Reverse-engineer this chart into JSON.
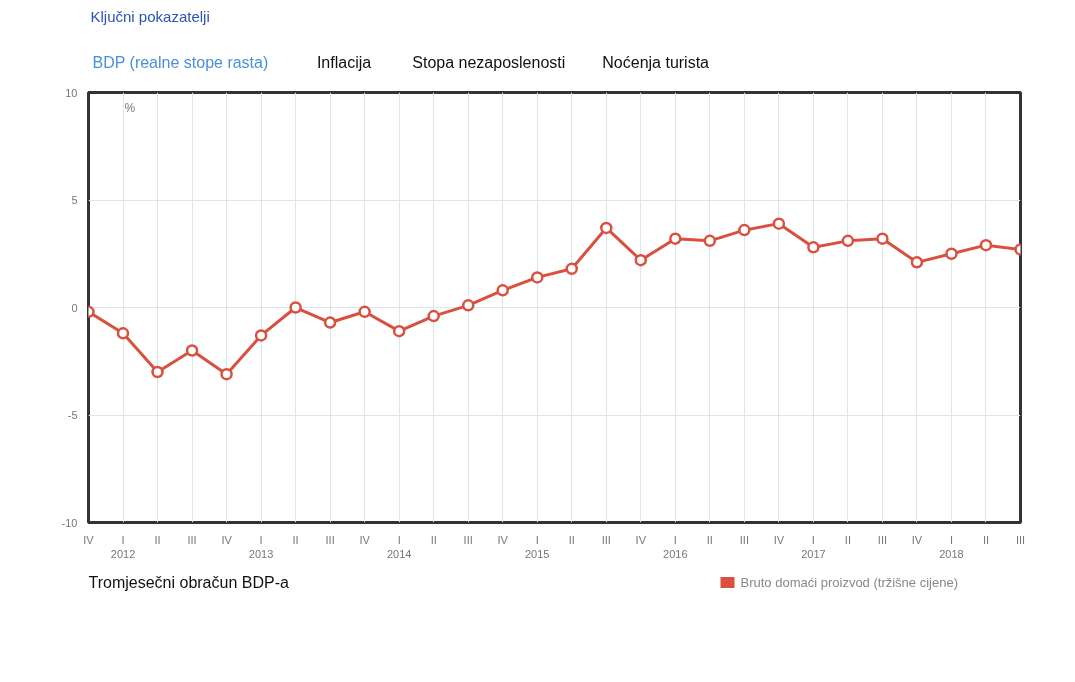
{
  "chart_data": {
    "type": "line",
    "title": "Ključni pokazatelji",
    "ylabel": "%",
    "annotations": [
      "BDP (realne stope rasta)",
      "Inflacija",
      "Stopa nezaposlenosti",
      "Noćenja turista",
      "Tromjesečni obračun BDP-a"
    ],
    "categories": [
      "IV",
      "I\n2012",
      "II",
      "III",
      "IV",
      "I\n2013",
      "II",
      "III",
      "IV",
      "I\n2014",
      "II",
      "III",
      "IV",
      "I\n2015",
      "II",
      "III",
      "IV",
      "I\n2016",
      "II",
      "III",
      "IV",
      "I\n2017",
      "II",
      "III",
      "IV",
      "I\n2018",
      "II",
      "III"
    ],
    "series": [
      {
        "name": "Bruto domaći proizvod (tržišne cijene)",
        "color": "#d9503f",
        "values": [
          -0.2,
          -1.2,
          -3.0,
          -2.0,
          -3.1,
          -1.3,
          0.0,
          -0.7,
          -0.2,
          -1.1,
          -0.4,
          0.1,
          0.8,
          1.4,
          1.8,
          3.7,
          2.2,
          3.2,
          3.1,
          3.6,
          3.9,
          2.8,
          3.1,
          3.2,
          2.1,
          2.5,
          2.9,
          2.7
        ]
      }
    ],
    "ylim": [
      -10,
      10
    ],
    "yticks": [
      -10,
      -5,
      0,
      5,
      10
    ],
    "grid": true,
    "legend": "bottom right",
    "marker": "circle",
    "line_style": "solid"
  }
}
